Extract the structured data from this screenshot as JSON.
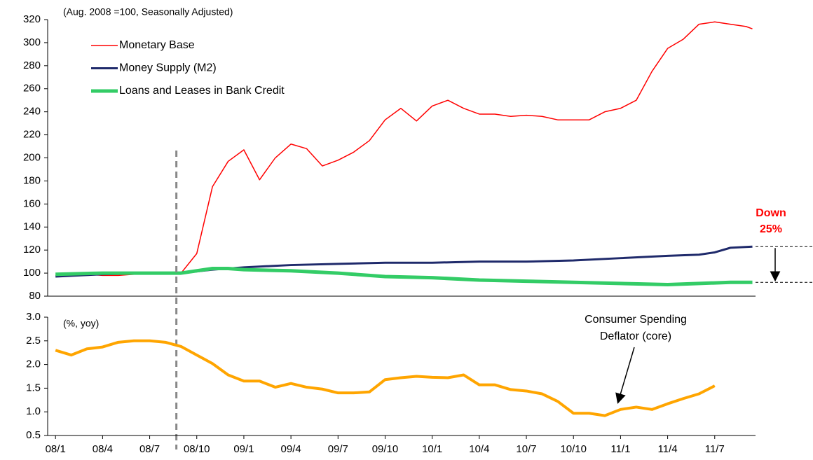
{
  "chart_data": [
    {
      "type": "line",
      "annotation": "(Aug. 2008 =100, Seasonally Adjusted)",
      "callout": [
        "Down",
        "25%"
      ],
      "vline_x": 7.7,
      "xlim": [
        -0.5,
        44.6
      ],
      "ylim": [
        80,
        320
      ],
      "yticks": [
        80,
        100,
        120,
        140,
        160,
        180,
        200,
        220,
        240,
        260,
        280,
        300,
        320
      ],
      "series": [
        {
          "name": "Monetary Base",
          "color": "#ff0000",
          "x": [
            0,
            1,
            2,
            3,
            4,
            5,
            6,
            7,
            8,
            9,
            10,
            11,
            12,
            13,
            14,
            15,
            16,
            17,
            18,
            19,
            20,
            21,
            22,
            23,
            24,
            25,
            26,
            27,
            28,
            29,
            30,
            31,
            32,
            33,
            34,
            35,
            36,
            37,
            38,
            39,
            40,
            41,
            42,
            43,
            44,
            44.4
          ],
          "values": [
            98,
            98,
            99,
            98,
            98,
            99,
            99,
            100,
            100,
            117,
            175,
            197,
            207,
            181,
            200,
            212,
            208,
            193,
            198,
            205,
            215,
            233,
            243,
            232,
            245,
            250,
            243,
            238,
            238,
            236,
            237,
            236,
            233,
            233,
            233,
            240,
            243,
            250,
            275,
            295,
            303,
            316,
            318,
            316,
            314,
            312
          ]
        },
        {
          "name": "Money Supply (M2)",
          "color": "#1f2a6b",
          "x": [
            0,
            3,
            6,
            8,
            10,
            12,
            15,
            18,
            21,
            24,
            27,
            30,
            33,
            36,
            39,
            41,
            42,
            43,
            44.4
          ],
          "values": [
            97,
            99,
            100,
            100,
            103,
            105,
            107,
            108,
            109,
            109,
            110,
            110,
            111,
            113,
            115,
            116,
            118,
            122,
            123
          ]
        },
        {
          "name": "Loans and Leases in Bank Credit",
          "color": "#33cc66",
          "x": [
            0,
            3,
            6,
            8,
            10,
            11,
            12,
            15,
            18,
            21,
            24,
            27,
            30,
            33,
            36,
            39,
            41,
            43,
            44.4
          ],
          "values": [
            99,
            100,
            100,
            100,
            104,
            104,
            103,
            102,
            100,
            97,
            96,
            94,
            93,
            92,
            91,
            90,
            91,
            92,
            92
          ]
        }
      ]
    },
    {
      "type": "line",
      "annotation": "(%, yoy)",
      "callout": [
        "Consumer Spending",
        "Deflator (core)"
      ],
      "xlim": [
        -0.5,
        44.6
      ],
      "xticks": [
        {
          "value": 0,
          "label": "08/1"
        },
        {
          "value": 3,
          "label": "08/4"
        },
        {
          "value": 6,
          "label": "08/7"
        },
        {
          "value": 9,
          "label": "08/10"
        },
        {
          "value": 12,
          "label": "09/1"
        },
        {
          "value": 15,
          "label": "09/4"
        },
        {
          "value": 18,
          "label": "09/7"
        },
        {
          "value": 21,
          "label": "09/10"
        },
        {
          "value": 24,
          "label": "10/1"
        },
        {
          "value": 27,
          "label": "10/4"
        },
        {
          "value": 30,
          "label": "10/7"
        },
        {
          "value": 33,
          "label": "10/10"
        },
        {
          "value": 36,
          "label": "11/1"
        },
        {
          "value": 39,
          "label": "11/4"
        },
        {
          "value": 42,
          "label": "11/7"
        }
      ],
      "ylim": [
        0.5,
        3
      ],
      "yticks": [
        0.5,
        {
          "value": 1,
          "label": "1.0"
        },
        1.5,
        {
          "value": 2,
          "label": "2.0"
        },
        2.5,
        {
          "value": 3,
          "label": "3.0"
        }
      ],
      "series": [
        {
          "color": "#ffa500",
          "x": [
            0,
            1,
            2,
            3,
            4,
            5,
            6,
            7,
            8,
            9,
            10,
            11,
            12,
            13,
            14,
            15,
            16,
            17,
            18,
            19,
            20,
            21,
            22,
            23,
            24,
            25,
            26,
            27,
            28,
            29,
            30,
            31,
            32,
            33,
            34,
            35,
            36,
            37,
            38,
            39,
            40,
            41,
            42
          ],
          "values": [
            2.3,
            2.2,
            2.33,
            2.37,
            2.47,
            2.5,
            2.5,
            2.47,
            2.38,
            2.2,
            2.02,
            1.78,
            1.65,
            1.65,
            1.52,
            1.6,
            1.52,
            1.48,
            1.4,
            1.4,
            1.42,
            1.68,
            1.72,
            1.75,
            1.73,
            1.72,
            1.78,
            1.57,
            1.57,
            1.47,
            1.44,
            1.38,
            1.22,
            0.97,
            0.97,
            0.92,
            1.05,
            1.1,
            1.05,
            1.17,
            1.28,
            1.38,
            1.55
          ]
        }
      ]
    }
  ]
}
